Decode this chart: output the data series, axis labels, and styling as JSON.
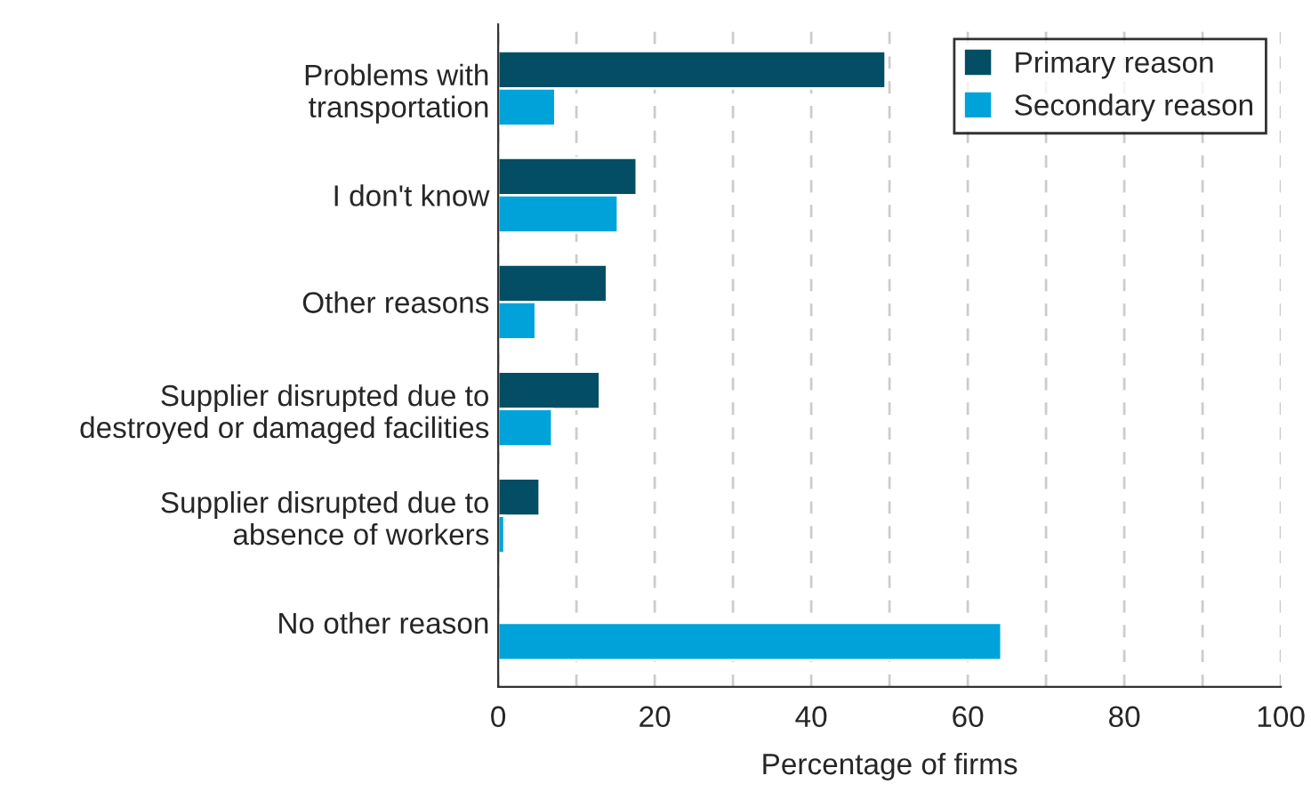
{
  "chart_data": {
    "type": "bar",
    "orientation": "horizontal",
    "xlabel": "Percentage of firms",
    "categories": [
      "Problems with\ntransportation",
      "I don't know",
      "Other reasons",
      "Supplier disrupted due to\ndestroyed or damaged facilities",
      "Supplier disrupted due to\nabsence of workers",
      "No other reason"
    ],
    "series": [
      {
        "name": "Primary reason",
        "color": "#034e64",
        "values": [
          49.5,
          17.7,
          13.9,
          13.0,
          5.3,
          null
        ]
      },
      {
        "name": "Secondary reason",
        "color": "#00a3d9",
        "values": [
          7.3,
          15.3,
          4.8,
          6.9,
          0.8,
          64.3
        ]
      }
    ],
    "xlim": [
      0,
      100
    ],
    "xticks": [
      0,
      {
        "value": 10,
        "label": null
      },
      20,
      {
        "value": 30,
        "label": null
      },
      40,
      {
        "value": 50,
        "label": null
      },
      60,
      {
        "value": 70,
        "label": null
      },
      80,
      {
        "value": 90,
        "label": null
      },
      100
    ],
    "grid": "x",
    "legend": "top right"
  }
}
